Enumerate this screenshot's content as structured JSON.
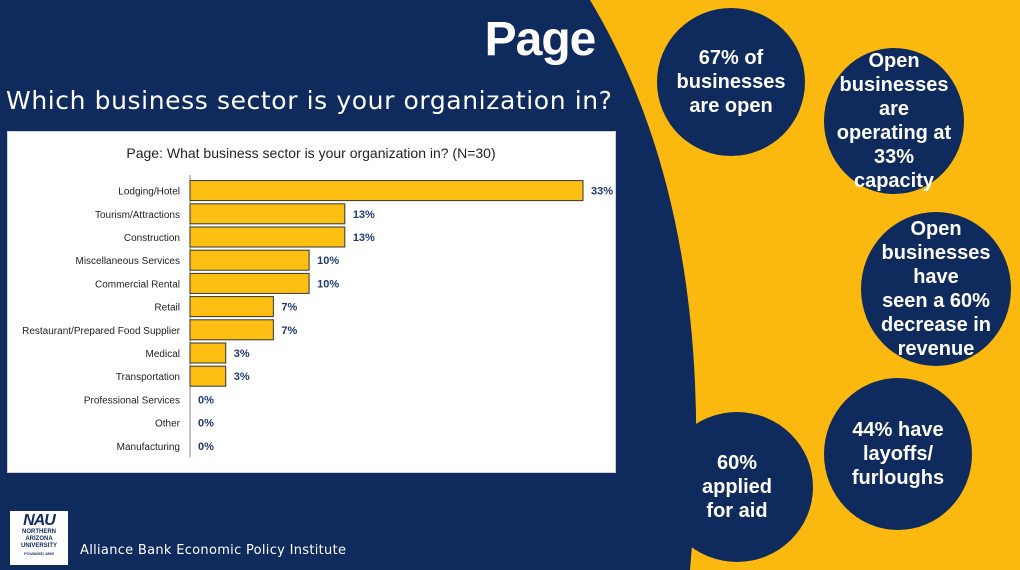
{
  "header": {
    "title": "Page",
    "subtitle": "Which business sector is your organization in?"
  },
  "colors": {
    "navy": "#0f2a5c",
    "gold": "#fbb90f",
    "bar": "#fdc012",
    "label_blue": "#1f3a74"
  },
  "chart_data": {
    "type": "bar",
    "orientation": "horizontal",
    "title": "Page: What business sector is your organization in? (N=30)",
    "categories": [
      "Lodging/Hotel",
      "Tourism/Attractions",
      "Construction",
      "Miscellaneous Services",
      "Commercial Rental",
      "Retail",
      "Restaurant/Prepared Food Supplier",
      "Medical",
      "Transportation",
      "Professional Services",
      "Other",
      "Manufacturing"
    ],
    "values": [
      33,
      13,
      13,
      10,
      10,
      7,
      7,
      3,
      3,
      0,
      0,
      0
    ],
    "data_labels": [
      "33%",
      "13%",
      "13%",
      "10%",
      "10%",
      "7%",
      "7%",
      "3%",
      "3%",
      "0%",
      "0%",
      "0%"
    ],
    "xlim": [
      0,
      33
    ],
    "grid": false,
    "legend": "none"
  },
  "stats": [
    {
      "text": "67% of\nbusinesses\nare open"
    },
    {
      "text": "Open\nbusinesses are\noperating at\n33% capacity"
    },
    {
      "text": "Open\nbusinesses have\nseen a 60%\ndecrease in\nrevenue"
    },
    {
      "text": "44% have\nlayoffs/\nfurloughs"
    },
    {
      "text": "60%\napplied\nfor aid"
    }
  ],
  "logo": {
    "name": "NAU",
    "line1": "NORTHERN",
    "line2": "ARIZONA",
    "line3": "UNIVERSITY",
    "line4": "FOUNDED 1899"
  },
  "footer": {
    "text": "Alliance Bank Economic Policy Institute"
  }
}
